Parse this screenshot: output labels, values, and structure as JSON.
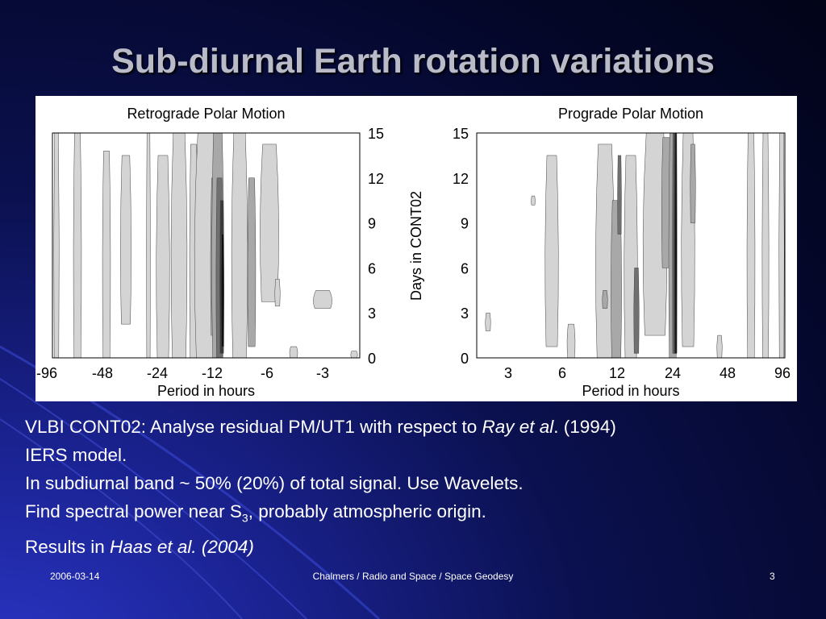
{
  "slide": {
    "title": "Sub-diurnal Earth rotation variations",
    "footer": {
      "date": "2006-03-14",
      "center": "Chalmers / Radio and Space / Space Geodesy",
      "page": "3"
    },
    "body": {
      "line1_a": "VLBI CONT02: Analyse residual PM/UT1 with respect to ",
      "line1_b": "Ray et al",
      "line1_c": ". (1994)",
      "line2": "IERS model.",
      "line3": "In subdiurnal band ~ 50% (20%) of total signal. Use Wavelets.",
      "line4_a": "Find spectral power near S",
      "line4_sub": "3",
      "line4_b": ", probably atmospheric origin.",
      "line5_a": "Results in ",
      "line5_b": "Haas et al. (2004)"
    }
  },
  "chart_data": [
    {
      "type": "heatmap",
      "title": "Retrograde Polar Motion",
      "xlabel": "Period in hours",
      "ylabel": "Days in CONT02",
      "x_tick_labels": [
        "-96",
        "-48",
        "-24",
        "-12",
        "-6",
        "-3"
      ],
      "y_ticks": [
        0,
        3,
        6,
        9,
        12,
        15
      ],
      "ylim": [
        0,
        15
      ],
      "y_axis_side": "right",
      "peak_period_hours": -12,
      "colors": [
        "#ffffff",
        "#d4d4d4",
        "#a8a8a8",
        "#707070",
        "#3a3a3a",
        "#111111"
      ]
    },
    {
      "type": "heatmap",
      "title": "Prograde Polar Motion",
      "xlabel": "Period in hours",
      "x_tick_labels": [
        "3",
        "6",
        "12",
        "24",
        "48",
        "96"
      ],
      "y_ticks": [
        0,
        3,
        6,
        9,
        12,
        15
      ],
      "ylim": [
        0,
        15
      ],
      "y_axis_side": "left",
      "peak_period_hours": 24,
      "colors": [
        "#ffffff",
        "#d4d4d4",
        "#a8a8a8",
        "#707070",
        "#3a3a3a",
        "#111111"
      ]
    }
  ]
}
